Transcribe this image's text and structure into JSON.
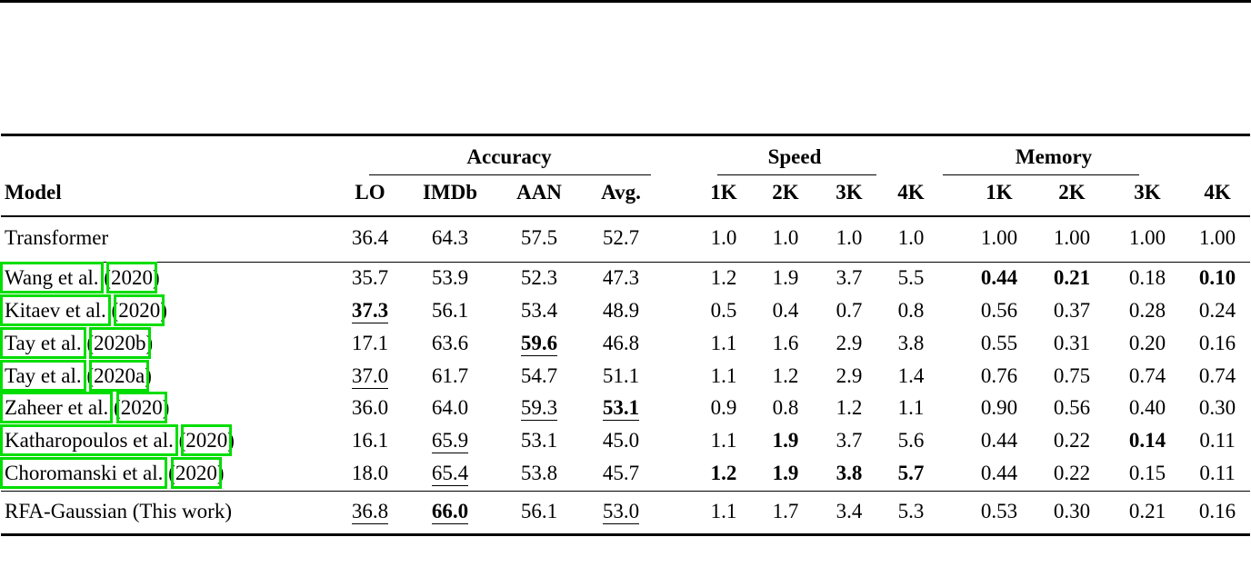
{
  "colors": {
    "link_box_green": "#00dd00",
    "rule_black": "#000000"
  },
  "table": {
    "model_header": "Model",
    "groups": {
      "accuracy": {
        "label": "Accuracy",
        "cols": [
          "LO",
          "IMDb",
          "AAN",
          "Avg."
        ]
      },
      "speed": {
        "label": "Speed",
        "cols": [
          "1K",
          "2K",
          "3K",
          "4K"
        ]
      },
      "memory": {
        "label": "Memory",
        "cols": [
          "1K",
          "2K",
          "3K",
          "4K"
        ]
      }
    },
    "rows": [
      {
        "section": "baseline",
        "model": {
          "text": "Transformer"
        },
        "cells": [
          [
            "36.4",
            ""
          ],
          [
            "64.3",
            ""
          ],
          [
            "57.5",
            ""
          ],
          [
            "52.7",
            ""
          ],
          [
            "1.0",
            ""
          ],
          [
            "1.0",
            ""
          ],
          [
            "1.0",
            ""
          ],
          [
            "1.0",
            ""
          ],
          [
            "1.00",
            ""
          ],
          [
            "1.00",
            ""
          ],
          [
            "1.00",
            ""
          ],
          [
            "1.00",
            ""
          ]
        ]
      },
      {
        "section": "prior",
        "model": {
          "author": "Wang et al.",
          "year": "2020"
        },
        "cells": [
          [
            "35.7",
            ""
          ],
          [
            "53.9",
            ""
          ],
          [
            "52.3",
            ""
          ],
          [
            "47.3",
            ""
          ],
          [
            "1.2",
            ""
          ],
          [
            "1.9",
            ""
          ],
          [
            "3.7",
            ""
          ],
          [
            "5.5",
            ""
          ],
          [
            "0.44",
            "b"
          ],
          [
            "0.21",
            "b"
          ],
          [
            "0.18",
            ""
          ],
          [
            "0.10",
            "b"
          ]
        ]
      },
      {
        "section": "prior",
        "model": {
          "author": "Kitaev et al.",
          "year": "2020"
        },
        "cells": [
          [
            "37.3",
            "bu"
          ],
          [
            "56.1",
            ""
          ],
          [
            "53.4",
            ""
          ],
          [
            "48.9",
            ""
          ],
          [
            "0.5",
            ""
          ],
          [
            "0.4",
            ""
          ],
          [
            "0.7",
            ""
          ],
          [
            "0.8",
            ""
          ],
          [
            "0.56",
            ""
          ],
          [
            "0.37",
            ""
          ],
          [
            "0.28",
            ""
          ],
          [
            "0.24",
            ""
          ]
        ]
      },
      {
        "section": "prior",
        "model": {
          "author": "Tay et al.",
          "year": "2020b"
        },
        "cells": [
          [
            "17.1",
            ""
          ],
          [
            "63.6",
            ""
          ],
          [
            "59.6",
            "bu"
          ],
          [
            "46.8",
            ""
          ],
          [
            "1.1",
            ""
          ],
          [
            "1.6",
            ""
          ],
          [
            "2.9",
            ""
          ],
          [
            "3.8",
            ""
          ],
          [
            "0.55",
            ""
          ],
          [
            "0.31",
            ""
          ],
          [
            "0.20",
            ""
          ],
          [
            "0.16",
            ""
          ]
        ]
      },
      {
        "section": "prior",
        "model": {
          "author": "Tay et al.",
          "year": "2020a"
        },
        "cells": [
          [
            "37.0",
            "u"
          ],
          [
            "61.7",
            ""
          ],
          [
            "54.7",
            ""
          ],
          [
            "51.1",
            ""
          ],
          [
            "1.1",
            ""
          ],
          [
            "1.2",
            ""
          ],
          [
            "2.9",
            ""
          ],
          [
            "1.4",
            ""
          ],
          [
            "0.76",
            ""
          ],
          [
            "0.75",
            ""
          ],
          [
            "0.74",
            ""
          ],
          [
            "0.74",
            ""
          ]
        ]
      },
      {
        "section": "prior",
        "model": {
          "author": "Zaheer et al.",
          "year": "2020"
        },
        "cells": [
          [
            "36.0",
            ""
          ],
          [
            "64.0",
            ""
          ],
          [
            "59.3",
            "u"
          ],
          [
            "53.1",
            "bu"
          ],
          [
            "0.9",
            ""
          ],
          [
            "0.8",
            ""
          ],
          [
            "1.2",
            ""
          ],
          [
            "1.1",
            ""
          ],
          [
            "0.90",
            ""
          ],
          [
            "0.56",
            ""
          ],
          [
            "0.40",
            ""
          ],
          [
            "0.30",
            ""
          ]
        ]
      },
      {
        "section": "prior",
        "model": {
          "author": "Katharopoulos et al.",
          "year": "2020"
        },
        "cells": [
          [
            "16.1",
            ""
          ],
          [
            "65.9",
            "u"
          ],
          [
            "53.1",
            ""
          ],
          [
            "45.0",
            ""
          ],
          [
            "1.1",
            ""
          ],
          [
            "1.9",
            "b"
          ],
          [
            "3.7",
            ""
          ],
          [
            "5.6",
            ""
          ],
          [
            "0.44",
            ""
          ],
          [
            "0.22",
            ""
          ],
          [
            "0.14",
            "b"
          ],
          [
            "0.11",
            ""
          ]
        ]
      },
      {
        "section": "prior",
        "model": {
          "author": "Choromanski et al.",
          "year": "2020"
        },
        "cells": [
          [
            "18.0",
            ""
          ],
          [
            "65.4",
            "u"
          ],
          [
            "53.8",
            ""
          ],
          [
            "45.7",
            ""
          ],
          [
            "1.2",
            "b"
          ],
          [
            "1.9",
            "b"
          ],
          [
            "3.8",
            "b"
          ],
          [
            "5.7",
            "b"
          ],
          [
            "0.44",
            ""
          ],
          [
            "0.22",
            ""
          ],
          [
            "0.15",
            ""
          ],
          [
            "0.11",
            ""
          ]
        ]
      },
      {
        "section": "ours",
        "model": {
          "text": "RFA-Gaussian (This work)"
        },
        "cells": [
          [
            "36.8",
            "u"
          ],
          [
            "66.0",
            "bu"
          ],
          [
            "56.1",
            ""
          ],
          [
            "53.0",
            "u"
          ],
          [
            "1.1",
            ""
          ],
          [
            "1.7",
            ""
          ],
          [
            "3.4",
            ""
          ],
          [
            "5.3",
            ""
          ],
          [
            "0.53",
            ""
          ],
          [
            "0.30",
            ""
          ],
          [
            "0.21",
            ""
          ],
          [
            "0.16",
            ""
          ]
        ]
      }
    ]
  }
}
